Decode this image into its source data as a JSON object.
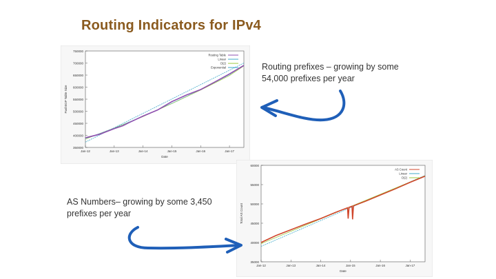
{
  "slide": {
    "title": "Routing Indicators for IPv4",
    "note_top": "Routing prefixes – growing by some 54,000 prefixes per year",
    "note_bottom": "AS Numbers– growing by some 3,450 prefixes per year"
  },
  "colors": {
    "title": "#8a5a1e",
    "arrow": "#1f5fb8",
    "series_routing": "#8e4fb0",
    "series_asn": "#d0462b",
    "fit_a": "#3fa9c9",
    "fit_b": "#9bc93f"
  },
  "chart_data": [
    {
      "type": "line",
      "title": "",
      "xlabel": "Date",
      "ylabel": "Fwd BGP Table Size",
      "x_tick_labels": [
        "Jan-12",
        "Jan-13",
        "Jan-14",
        "Jan-15",
        "Jan-16",
        "Jan-17"
      ],
      "y_tick_labels": [
        "350000",
        "400000",
        "450000",
        "500000",
        "550000",
        "600000",
        "650000",
        "700000",
        "750000"
      ],
      "xlim": [
        2012,
        2017.5
      ],
      "ylim": [
        350000,
        750000
      ],
      "legend": [
        "Routing Table",
        "Linear",
        "O(2)",
        "Exponential"
      ],
      "series": [
        {
          "name": "Routing Table",
          "x": [
            2012.0,
            2012.5,
            2013.0,
            2013.3,
            2013.5,
            2014.0,
            2014.5,
            2015.0,
            2015.5,
            2016.0,
            2016.5,
            2017.0,
            2017.5
          ],
          "values": [
            390000,
            405000,
            428000,
            440000,
            452000,
            480000,
            505000,
            540000,
            567000,
            590000,
            622000,
            655000,
            690000
          ]
        },
        {
          "name": "Linear",
          "x": [
            2012.0,
            2017.5
          ],
          "values": [
            372000,
            700000
          ]
        },
        {
          "name": "O(2)",
          "x": [
            2012.0,
            2013.0,
            2014.0,
            2015.0,
            2016.0,
            2017.0,
            2017.5
          ],
          "values": [
            385000,
            430000,
            478000,
            532000,
            588000,
            648000,
            688000
          ]
        },
        {
          "name": "Exponential",
          "x": [
            2012.0,
            2013.0,
            2014.0,
            2015.0,
            2016.0,
            2017.0,
            2017.5
          ],
          "values": [
            386000,
            431000,
            479000,
            533000,
            590000,
            651000,
            692000
          ]
        }
      ]
    },
    {
      "type": "line",
      "title": "",
      "xlabel": "Date",
      "ylabel": "Total AS Count",
      "x_tick_labels": [
        "Jan-12",
        "Jan-13",
        "Jan-14",
        "Jan-15",
        "Jan-16",
        "Jan-17"
      ],
      "y_tick_labels": [
        "35000",
        "40000",
        "45000",
        "50000",
        "55000",
        "60000"
      ],
      "xlim": [
        2012,
        2017.5
      ],
      "ylim": [
        35000,
        60000
      ],
      "legend": [
        "AS Count",
        "Linear",
        "O(2)"
      ],
      "series": [
        {
          "name": "AS Count",
          "x": [
            2012.0,
            2012.5,
            2013.0,
            2013.5,
            2014.0,
            2014.5,
            2014.9,
            2014.92,
            2014.95,
            2015.05,
            2015.07,
            2015.1,
            2015.5,
            2016.0,
            2016.5,
            2017.0,
            2017.5
          ],
          "values": [
            40000,
            41800,
            43300,
            44800,
            46200,
            47800,
            49000,
            46200,
            49100,
            49400,
            46000,
            49500,
            50700,
            52300,
            53900,
            55600,
            57200
          ]
        },
        {
          "name": "Linear",
          "x": [
            2012.0,
            2017.5
          ],
          "values": [
            39000,
            57400
          ]
        },
        {
          "name": "O(2)",
          "x": [
            2012.0,
            2013.0,
            2014.0,
            2015.0,
            2016.0,
            2017.0,
            2017.5
          ],
          "values": [
            39700,
            42900,
            46100,
            49300,
            52500,
            55700,
            57300
          ]
        }
      ]
    }
  ]
}
